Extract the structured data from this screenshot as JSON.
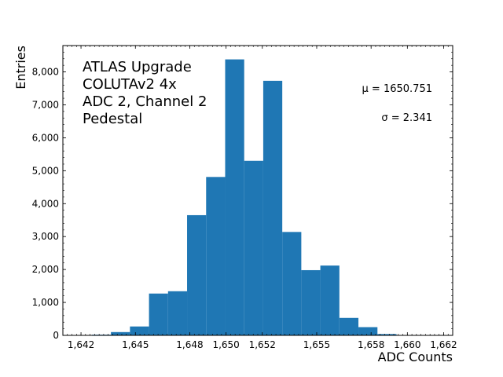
{
  "chart_data": {
    "type": "bar",
    "xlabel": "ADC Counts",
    "ylabel": "Entries",
    "xlim": [
      1641,
      1662.5
    ],
    "ylim": [
      0,
      8800
    ],
    "annotations": [
      "ATLAS Upgrade",
      "COLUTAv2 4x",
      "ADC 2, Channel 2",
      "Pedestal"
    ],
    "stats": [
      "μ = 1650.751",
      "σ = 2.341"
    ],
    "bar_color": "#1f77b4",
    "x_ticks": [
      1642,
      1645,
      1648,
      1650,
      1652,
      1655,
      1658,
      1660,
      1662
    ],
    "x_tick_labels": [
      "1,642",
      "1,645",
      "1,648",
      "1,650",
      "1,652",
      "1,655",
      "1,658",
      "1,660",
      "1,662"
    ],
    "y_ticks": [
      0,
      1000,
      2000,
      3000,
      4000,
      5000,
      6000,
      7000,
      8000
    ],
    "y_tick_labels": [
      "0",
      "1,000",
      "2,000",
      "3,000",
      "4,000",
      "5,000",
      "6,000",
      "7,000",
      "8,000"
    ],
    "bins": [
      {
        "x0": 1642.6,
        "x1": 1643.65,
        "value": 20
      },
      {
        "x0": 1643.65,
        "x1": 1644.7,
        "value": 100
      },
      {
        "x0": 1644.7,
        "x1": 1645.75,
        "value": 270
      },
      {
        "x0": 1645.75,
        "x1": 1646.8,
        "value": 1270
      },
      {
        "x0": 1646.8,
        "x1": 1647.85,
        "value": 1340
      },
      {
        "x0": 1647.85,
        "x1": 1648.9,
        "value": 3650
      },
      {
        "x0": 1648.9,
        "x1": 1649.95,
        "value": 4810
      },
      {
        "x0": 1649.95,
        "x1": 1651.0,
        "value": 8380
      },
      {
        "x0": 1651.0,
        "x1": 1652.05,
        "value": 5300
      },
      {
        "x0": 1652.05,
        "x1": 1653.1,
        "value": 7730
      },
      {
        "x0": 1653.1,
        "x1": 1654.15,
        "value": 3140
      },
      {
        "x0": 1654.15,
        "x1": 1655.2,
        "value": 1980
      },
      {
        "x0": 1655.2,
        "x1": 1656.25,
        "value": 2120
      },
      {
        "x0": 1656.25,
        "x1": 1657.3,
        "value": 530
      },
      {
        "x0": 1657.3,
        "x1": 1658.35,
        "value": 250
      },
      {
        "x0": 1658.35,
        "x1": 1659.4,
        "value": 40
      }
    ]
  }
}
